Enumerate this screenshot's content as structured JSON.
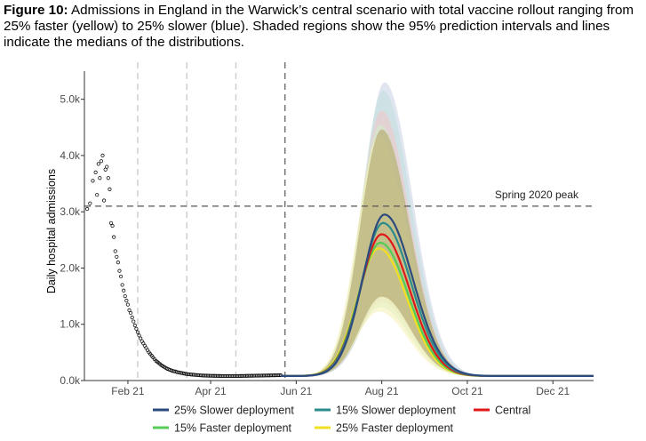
{
  "caption": {
    "label": "Figure 10:",
    "text": " Admissions in England in the Warwick’s central scenario with total vaccine rollout ranging from 25% faster (yellow) to 25% slower (blue). Shaded regions show the 95% prediction intervals and lines indicate the medians of the distributions."
  },
  "chart_data": {
    "type": "line",
    "ylabel": "Daily hospital admissions",
    "xlabel": "",
    "x_unit": "days since 1 Jan 2021",
    "xlim": [
      0,
      363
    ],
    "ylim": [
      0,
      5500
    ],
    "y_ticks": [
      0,
      1000,
      2000,
      3000,
      4000,
      5000
    ],
    "y_tick_labels": [
      "0.0k",
      "1.0k",
      "2.0k",
      "3.0k",
      "4.0k",
      "5.0k"
    ],
    "x_ticks": [
      31,
      90,
      151,
      212,
      273,
      334
    ],
    "x_tick_labels": [
      "Feb 21",
      "Apr 21",
      "Jun 21",
      "Aug 21",
      "Oct 21",
      "Dec 21"
    ],
    "grid": false,
    "reference_line": {
      "value": 3100,
      "label": "Spring 2020 peak"
    },
    "vertical_lines": [
      {
        "x": 38,
        "style": "light"
      },
      {
        "x": 73,
        "style": "light"
      },
      {
        "x": 108,
        "style": "light"
      },
      {
        "x": 143,
        "style": "dark"
      }
    ],
    "observed": {
      "x": [
        2,
        4,
        6,
        8,
        9,
        10,
        11,
        12,
        13,
        14,
        15,
        16,
        17,
        18,
        19,
        20,
        21,
        22,
        23,
        24,
        25,
        26,
        27,
        28,
        29,
        30,
        31,
        32,
        33,
        34,
        35,
        36,
        37,
        38,
        39,
        40,
        41,
        42,
        43,
        44,
        45,
        46,
        47,
        48,
        49,
        50,
        51,
        52,
        53,
        54,
        55,
        56,
        57,
        58,
        59,
        60,
        61,
        62,
        63,
        64,
        65,
        66,
        67,
        68,
        69,
        70,
        71,
        72,
        73,
        74,
        75,
        76,
        77,
        78,
        79,
        80,
        81,
        82,
        83,
        84,
        85,
        86,
        87,
        88,
        89,
        90,
        91,
        92,
        93,
        94,
        95,
        96,
        97,
        98,
        99,
        100,
        101,
        102,
        103,
        104,
        105,
        106,
        107,
        108,
        109,
        110,
        111,
        112,
        113,
        114,
        115,
        116,
        117,
        118,
        119,
        120,
        121,
        122,
        123,
        124,
        125,
        126,
        127,
        128,
        129,
        130,
        131,
        132,
        133,
        134,
        135,
        136,
        137,
        138,
        139,
        140
      ],
      "y": [
        3050,
        3150,
        3550,
        3700,
        3300,
        3850,
        3600,
        3900,
        4000,
        3200,
        3750,
        3800,
        3600,
        3400,
        2800,
        2750,
        2550,
        2300,
        2200,
        2100,
        1950,
        1850,
        1700,
        1600,
        1500,
        1420,
        1350,
        1250,
        1200,
        1120,
        1050,
        980,
        920,
        860,
        800,
        750,
        700,
        660,
        620,
        580,
        540,
        500,
        470,
        440,
        410,
        380,
        350,
        330,
        310,
        290,
        270,
        255,
        240,
        225,
        210,
        200,
        190,
        180,
        170,
        165,
        160,
        150,
        145,
        140,
        135,
        130,
        125,
        120,
        115,
        112,
        110,
        107,
        105,
        103,
        100,
        98,
        96,
        94,
        92,
        90,
        89,
        88,
        87,
        86,
        85,
        84,
        84,
        83,
        83,
        82,
        82,
        81,
        81,
        80,
        80,
        80,
        80,
        80,
        80,
        80,
        80,
        80,
        80,
        80,
        80,
        80,
        81,
        81,
        82,
        82,
        83,
        83,
        84,
        84,
        85,
        85,
        86,
        86,
        87,
        87,
        88,
        88,
        89,
        89,
        90,
        90,
        91,
        91,
        92,
        92,
        93,
        93,
        94,
        94,
        95,
        95
      ]
    },
    "scenario_start": 140,
    "series": [
      {
        "name": "25% Slower deployment",
        "color": "#2c4a7e",
        "peak_x": 214,
        "peak": 2950,
        "sigma_left": 15.5,
        "sigma_right": 20,
        "band_upper": 5300,
        "band_lower": 1600
      },
      {
        "name": "15% Slower deployment",
        "color": "#2a8c8c",
        "peak_x": 213,
        "peak": 2800,
        "sigma_left": 15.5,
        "sigma_right": 20,
        "band_upper": 5150,
        "band_lower": 1520
      },
      {
        "name": "Central",
        "color": "#e01818",
        "peak_x": 212,
        "peak": 2600,
        "sigma_left": 15.5,
        "sigma_right": 20,
        "band_upper": 4800,
        "band_lower": 1420
      },
      {
        "name": "15% Faster deployment",
        "color": "#55cc55",
        "peak_x": 211,
        "peak": 2450,
        "sigma_left": 15.5,
        "sigma_right": 20,
        "band_upper": 4550,
        "band_lower": 1330
      },
      {
        "name": "25% Faster deployment",
        "color": "#f0e020",
        "peak_x": 210,
        "peak": 2350,
        "sigma_left": 15.5,
        "sigma_right": 20,
        "band_upper": 4350,
        "band_lower": 1250
      }
    ],
    "legend": {
      "position": "bottom"
    }
  }
}
